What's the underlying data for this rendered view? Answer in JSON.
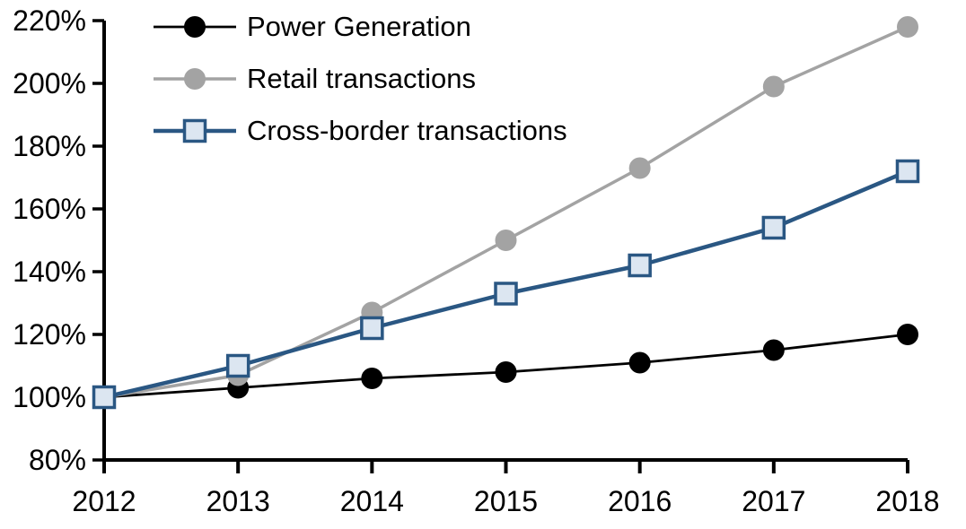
{
  "chart_data": {
    "type": "line",
    "title": "",
    "xlabel": "",
    "ylabel": "",
    "x": [
      2012,
      2013,
      2014,
      2015,
      2016,
      2017,
      2018
    ],
    "x_tick_labels": [
      "2012",
      "2013",
      "2014",
      "2015",
      "2016",
      "2017",
      "2018"
    ],
    "y_axis": {
      "min": 80,
      "max": 220,
      "step": 20,
      "tick_labels": [
        "80%",
        "100%",
        "120%",
        "140%",
        "160%",
        "180%",
        "200%",
        "220%"
      ],
      "unit": "percent"
    },
    "grid": false,
    "legend_position": "top-left-inside",
    "axis_color": "#000000",
    "background_color": "#ffffff",
    "series": [
      {
        "name": "Power Generation",
        "color": "#000000",
        "marker": "circle",
        "marker_fill": "#000000",
        "line_width": 2.8,
        "values": [
          100,
          103,
          106,
          108,
          111,
          115,
          120
        ]
      },
      {
        "name": "Retail transactions",
        "color": "#A3A3A3",
        "marker": "circle",
        "marker_fill": "#A3A3A3",
        "line_width": 3.5,
        "values": [
          100,
          107,
          127,
          150,
          173,
          199,
          218
        ]
      },
      {
        "name": "Cross-border transactions",
        "color": "#2A5783",
        "marker": "square",
        "marker_fill": "#DCE6F1",
        "line_width": 4.5,
        "values": [
          100,
          110,
          122,
          133,
          142,
          154,
          172
        ]
      }
    ]
  }
}
